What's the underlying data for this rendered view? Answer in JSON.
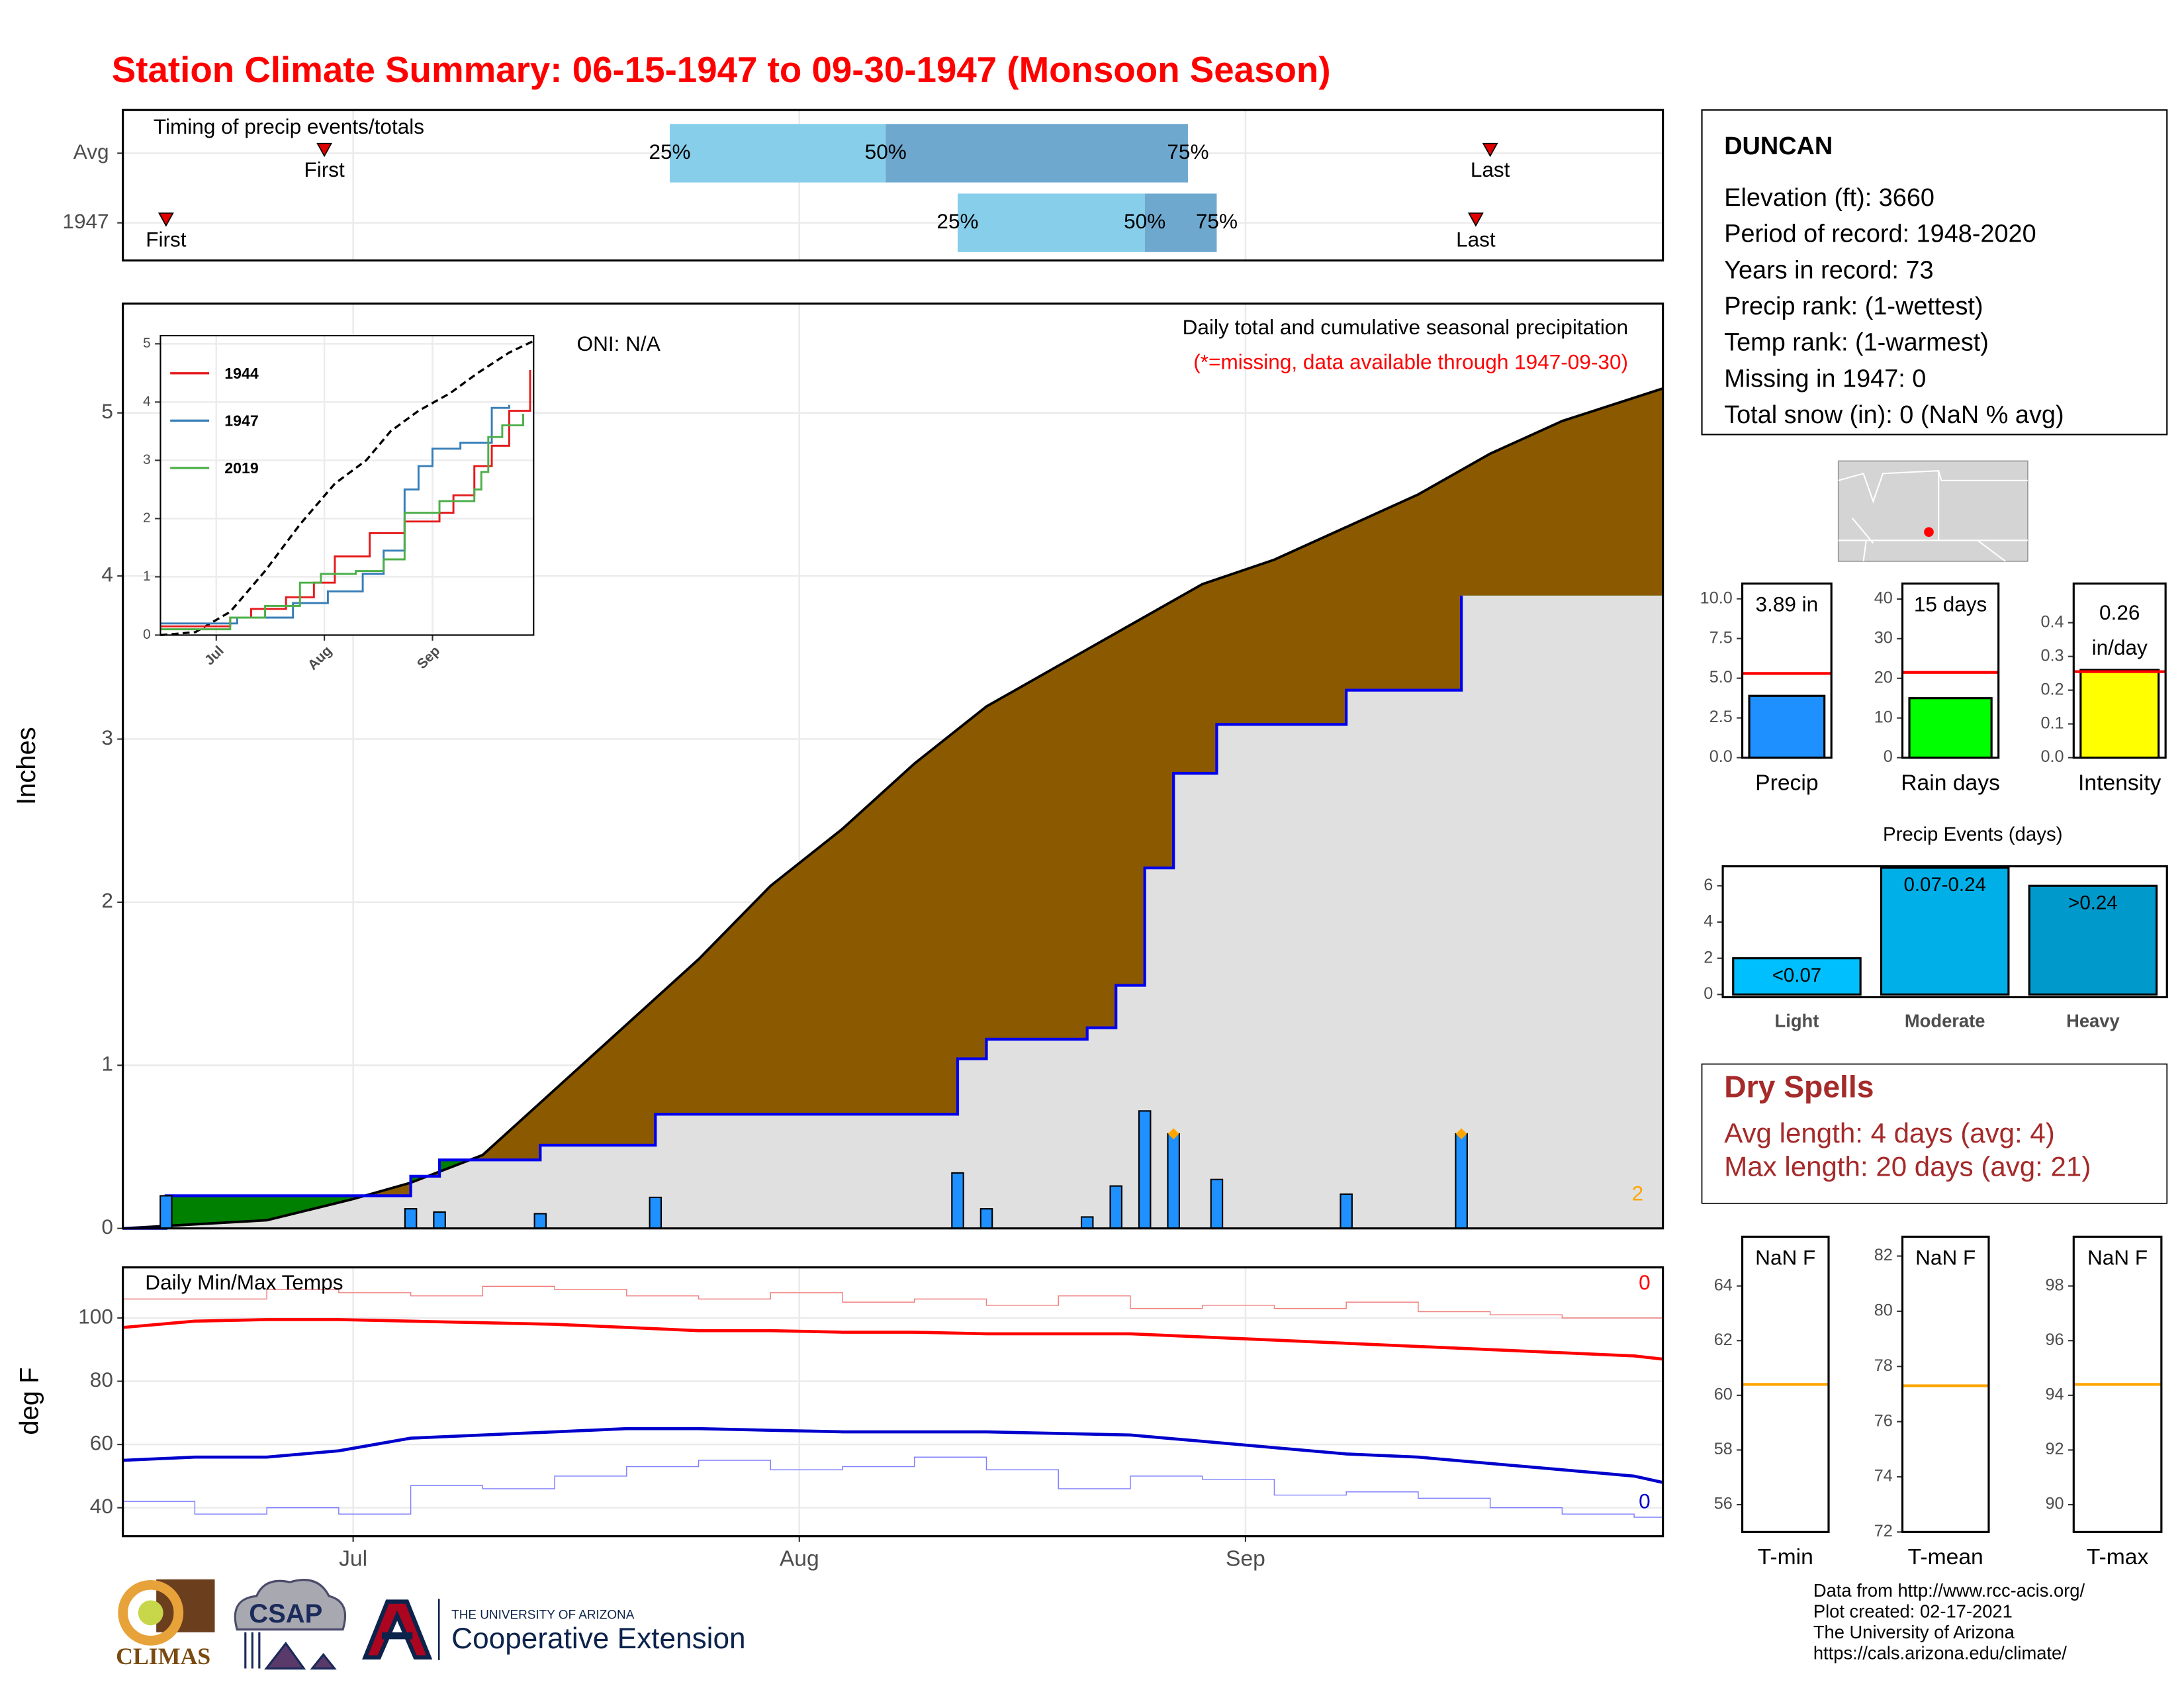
{
  "title": "Station Climate Summary: 06-15-1947 to 09-30-1947 (Monsoon Season)",
  "chart_data": [
    {
      "type": "timing",
      "title": "Timing of precip events/totals",
      "categories": [
        "Avg",
        "1947"
      ],
      "xlim": [
        0,
        107
      ],
      "xticks": [
        16,
        47,
        78
      ],
      "grid": true,
      "first": [
        14,
        3
      ],
      "q25": [
        38,
        58
      ],
      "q50": [
        53,
        71
      ],
      "q75": [
        74,
        76
      ],
      "last": [
        95,
        94
      ],
      "first_label": "First",
      "last_label": "Last",
      "q_labels": [
        "25%",
        "50%",
        "75%"
      ],
      "colors": [
        "#87ceeb",
        "#6fa8cf"
      ],
      "marker_color": "#e00000"
    },
    {
      "type": "area",
      "title": "Daily total and cumulative seasonal precipitation",
      "subtitle": "(*=missing, data available through 1947-09-30)",
      "annotation": "ONI: N/A",
      "missing_count": "2",
      "ylabel": "Inches",
      "xlim": [
        0,
        107
      ],
      "ylim": [
        0,
        5.67
      ],
      "xticks": [
        16,
        47,
        78
      ],
      "yticks": [
        0,
        1,
        2,
        3,
        4,
        5
      ],
      "grid": true,
      "avg": {
        "x": [
          0,
          10,
          16,
          20,
          25,
          30,
          35,
          40,
          45,
          50,
          55,
          60,
          65,
          70,
          75,
          80,
          85,
          90,
          95,
          100,
          107
        ],
        "values": [
          0,
          0.05,
          0.18,
          0.28,
          0.45,
          0.85,
          1.25,
          1.65,
          2.1,
          2.45,
          2.85,
          3.2,
          3.45,
          3.7,
          3.95,
          4.1,
          4.3,
          4.5,
          4.75,
          4.95,
          5.15
        ],
        "color": "#8b5a00"
      },
      "cumulative": {
        "x": [
          0,
          3,
          20,
          22,
          29,
          37,
          58,
          60,
          67,
          69,
          71,
          73,
          76,
          85,
          93
        ],
        "values": [
          0,
          0.2,
          0.32,
          0.42,
          0.51,
          0.7,
          1.04,
          1.16,
          1.23,
          1.49,
          2.21,
          2.79,
          3.09,
          3.3,
          3.88
        ],
        "color": "#0000ee"
      },
      "daily": {
        "x": [
          3,
          20,
          22,
          29,
          37,
          58,
          60,
          67,
          69,
          71,
          73,
          76,
          85,
          93
        ],
        "values": [
          0.2,
          0.12,
          0.1,
          0.09,
          0.19,
          0.34,
          0.12,
          0.07,
          0.26,
          0.72,
          0.58,
          0.3,
          0.21,
          0.58
        ],
        "color": "#1e90ff"
      },
      "flagged_x": [
        73,
        93
      ],
      "flag_color": "#ffa500",
      "above_color": "#008000",
      "below_color": "#e0e0e0"
    },
    {
      "type": "line",
      "xlim": [
        0,
        107
      ],
      "ylim": [
        0,
        5.14
      ],
      "xticks": [
        {
          "value": 16,
          "label": "Jul"
        },
        {
          "value": 47,
          "label": "Aug"
        },
        {
          "value": 78,
          "label": "Sep"
        }
      ],
      "yticks": [
        0,
        1,
        2,
        3,
        4,
        5
      ],
      "grid": true,
      "legend": "upper left",
      "xtick_rotation": 45,
      "avg": {
        "x": [
          0,
          10,
          20,
          30,
          40,
          50,
          59,
          66,
          74,
          83,
          91,
          100,
          107
        ],
        "values": [
          0,
          0.05,
          0.4,
          1.1,
          1.9,
          2.6,
          3.0,
          3.5,
          3.85,
          4.15,
          4.5,
          4.85,
          5.05
        ],
        "color": "#000000"
      },
      "series": [
        {
          "name": "1944",
          "color": "#e41a1c",
          "style": "step",
          "x": [
            0,
            20,
            26,
            36,
            44,
            50,
            60,
            70,
            80,
            84,
            90,
            95,
            100,
            106
          ],
          "values": [
            0.15,
            0.3,
            0.45,
            0.65,
            0.9,
            1.35,
            1.75,
            1.95,
            2.1,
            2.4,
            2.9,
            3.25,
            3.85,
            4.55
          ]
        },
        {
          "name": "1947",
          "color": "#377eb8",
          "style": "step",
          "x": [
            0,
            22,
            38,
            48,
            58,
            64,
            70,
            74,
            78,
            86,
            95,
            100
          ],
          "values": [
            0.2,
            0.3,
            0.55,
            0.75,
            1.05,
            1.45,
            2.5,
            2.9,
            3.2,
            3.3,
            3.9,
            3.95
          ]
        },
        {
          "name": "2019",
          "color": "#4daf4a",
          "style": "step",
          "x": [
            0,
            20,
            30,
            40,
            46,
            56,
            64,
            70,
            80,
            90,
            92,
            94,
            98,
            104
          ],
          "values": [
            0.1,
            0.3,
            0.5,
            0.9,
            1.05,
            1.1,
            1.3,
            2.1,
            2.3,
            2.5,
            2.8,
            3.4,
            3.6,
            3.8
          ]
        }
      ]
    },
    {
      "type": "line",
      "title": "Daily Min/Max Temps",
      "ylabel": "deg F",
      "xlim": [
        0,
        107
      ],
      "ylim": [
        31,
        116
      ],
      "xticks": [
        {
          "value": 16,
          "label": "Jul"
        },
        {
          "value": 47,
          "label": "Aug"
        },
        {
          "value": 78,
          "label": "Sep"
        }
      ],
      "yticks": [
        40,
        60,
        80,
        100
      ],
      "grid": true,
      "x": [
        0,
        5,
        10,
        15,
        20,
        25,
        30,
        35,
        40,
        45,
        50,
        55,
        60,
        65,
        70,
        75,
        80,
        85,
        90,
        95,
        100,
        105,
        107
      ],
      "series": [
        {
          "color": "#f08080",
          "style": "step",
          "values": [
            106,
            106,
            109,
            108,
            107,
            110,
            109,
            107,
            106,
            108,
            105,
            106,
            104,
            107,
            103,
            104,
            103,
            105,
            102,
            101,
            100,
            100,
            100
          ]
        },
        {
          "color": "#ff0000",
          "style": "line",
          "values": [
            97,
            99,
            99.5,
            99.5,
            99,
            98.5,
            98,
            97,
            96,
            96,
            95.5,
            95.5,
            95,
            95,
            95,
            94,
            93,
            92,
            91,
            90,
            89,
            88,
            87
          ]
        },
        {
          "color": "#0000cc",
          "style": "line",
          "values": [
            55,
            56,
            56,
            58,
            62,
            63,
            64,
            65,
            65,
            64.5,
            64,
            64,
            64,
            63.5,
            63,
            61,
            59,
            57,
            56,
            54,
            52,
            50,
            48
          ]
        },
        {
          "color": "#7f7fff",
          "style": "step",
          "values": [
            42,
            38,
            40,
            38,
            47,
            46,
            50,
            53,
            55,
            52,
            53,
            56,
            52,
            46,
            50,
            49,
            44,
            45,
            43,
            40,
            38,
            37,
            37
          ]
        }
      ],
      "labels": [
        {
          "text": "0",
          "color": "#ff0000"
        },
        {
          "text": "0",
          "color": "#0000cc"
        }
      ]
    },
    {
      "type": "gauge",
      "label": "Precip",
      "value": 3.89,
      "value_label": "3.89 in",
      "avg": 5.3,
      "ylim": [
        0,
        10.96
      ],
      "yticks": [
        {
          "value": 0,
          "label": "0.0"
        },
        {
          "value": 2.5,
          "label": "2.5"
        },
        {
          "value": 5,
          "label": "5.0"
        },
        {
          "value": 7.5,
          "label": "7.5"
        },
        {
          "value": 10,
          "label": "10.0"
        }
      ],
      "color": "#1e90ff",
      "avg_color": "#ff0000"
    },
    {
      "type": "gauge",
      "label": "Rain days",
      "value": 15,
      "value_label": "15 days",
      "avg": 21.5,
      "ylim": [
        0,
        43.9
      ],
      "yticks": [
        0,
        10,
        20,
        30,
        40
      ],
      "color": "#00ff00",
      "avg_color": "#ff0000"
    },
    {
      "type": "gauge",
      "label": "Intensity",
      "value": 0.26,
      "value_label": "0.26",
      "value_unit": "in/day",
      "avg": 0.255,
      "ylim": [
        0,
        0.516
      ],
      "yticks": [
        {
          "value": 0,
          "label": "0.0"
        },
        0.1,
        0.2,
        0.3,
        0.4
      ],
      "color": "#ffff00",
      "avg_color": "#ff0000"
    },
    {
      "type": "bar",
      "title": "Precip Events (days)",
      "categories": [
        "Light",
        "Moderate",
        "Heavy"
      ],
      "values": [
        2,
        7,
        6
      ],
      "bar_labels": [
        "<0.07",
        "0.07-0.24",
        ">0.24"
      ],
      "colors": [
        "#00bfff",
        "#00afe8",
        "#0099cc"
      ],
      "ylim": [
        -0.15,
        7.08
      ],
      "yticks": [
        0,
        2,
        4,
        6
      ]
    },
    {
      "type": "gauge",
      "label": "T-min",
      "value": null,
      "value_label": "NaN F",
      "avg": 60.4,
      "ylim": [
        55.0,
        65.8
      ],
      "yticks": [
        56,
        58,
        60,
        62,
        64
      ],
      "avg_color": "#ffa500"
    },
    {
      "type": "gauge",
      "label": "T-mean",
      "value": null,
      "value_label": "NaN F",
      "avg": 77.3,
      "ylim": [
        72,
        82.7
      ],
      "yticks": [
        72,
        74,
        76,
        78,
        80,
        82
      ],
      "avg_color": "#ffa500"
    },
    {
      "type": "gauge",
      "label": "T-max",
      "value": null,
      "value_label": "NaN F",
      "avg": 94.4,
      "ylim": [
        89,
        99.8
      ],
      "yticks": [
        90,
        92,
        94,
        96,
        98
      ],
      "avg_color": "#ffa500"
    }
  ],
  "station": {
    "name": "DUNCAN",
    "lines": [
      "Elevation (ft): 3660",
      "Period of record: 1948-2020",
      "Years in record: 73",
      "Precip rank:  (1-wettest)",
      "Temp rank:  (1-warmest)",
      "Missing in 1947: 0",
      "Total snow (in): 0 (NaN % avg)"
    ]
  },
  "dry_spells": {
    "title": "Dry Spells",
    "lines": [
      "Avg length: 4 days (avg: 4)",
      "Max length: 20 days (avg: 21)"
    ]
  },
  "footer": [
    "Data from http://www.rcc-acis.org/",
    "Plot created: 02-17-2021",
    "The University of Arizona",
    "https://cals.arizona.edu/climate/"
  ],
  "logos": {
    "climas": "CLIMAS",
    "csap": "CSAP",
    "ua_small": "THE UNIVERSITY OF ARIZONA",
    "ua_big": "Cooperative Extension"
  }
}
